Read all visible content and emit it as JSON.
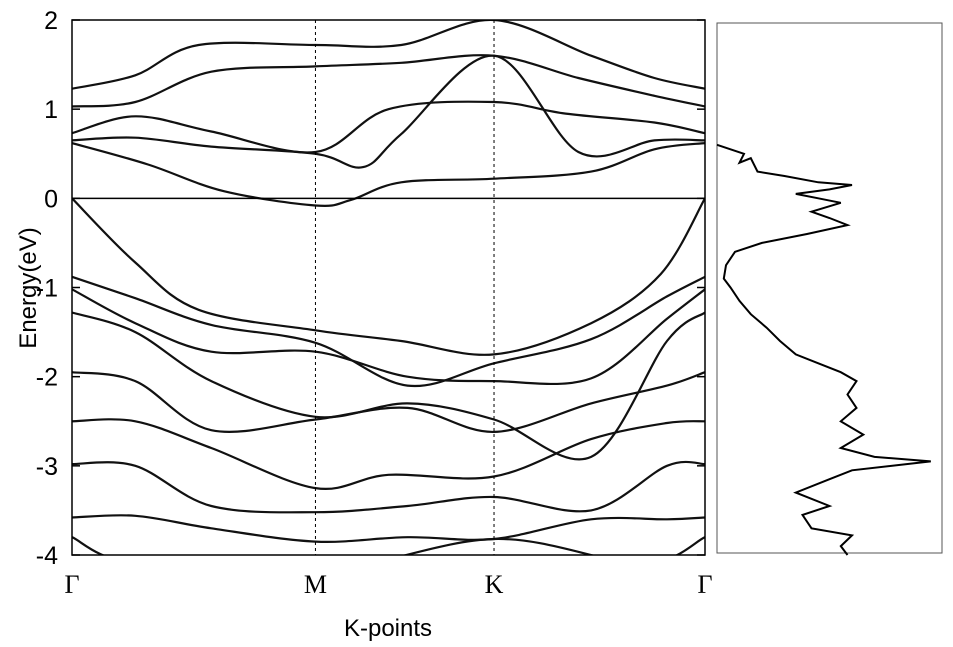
{
  "chart_data": [
    {
      "type": "line",
      "title": "",
      "xlabel": "K-points",
      "ylabel": "Energy(eV)",
      "ylim": [
        -4,
        2
      ],
      "xlim": [
        0,
        1
      ],
      "high_symmetry_points": [
        {
          "label": "Γ",
          "x": 0.0
        },
        {
          "label": "M",
          "x": 0.3846
        },
        {
          "label": "K",
          "x": 0.6667
        },
        {
          "label": "Γ",
          "x": 1.0
        }
      ],
      "yticks": [
        -4,
        -3,
        -2,
        -1,
        0,
        1,
        2
      ],
      "ytick_labels": [
        "-4",
        "-3",
        "-2",
        "-1",
        "0",
        "1",
        "2"
      ],
      "fermi_level": 0,
      "grid": false,
      "series": [
        {
          "values": [
            [
              0,
              1.23
            ],
            [
              0.1,
              1.38
            ],
            [
              0.2,
              1.72
            ],
            [
              0.3846,
              1.72
            ],
            [
              0.52,
              1.72
            ],
            [
              0.6667,
              2.0
            ],
            [
              0.82,
              1.6
            ],
            [
              0.92,
              1.35
            ],
            [
              1,
              1.23
            ]
          ]
        },
        {
          "values": [
            [
              0,
              1.03
            ],
            [
              0.1,
              1.08
            ],
            [
              0.22,
              1.42
            ],
            [
              0.3846,
              1.48
            ],
            [
              0.52,
              1.52
            ],
            [
              0.6667,
              1.6
            ],
            [
              0.8,
              1.35
            ],
            [
              0.92,
              1.15
            ],
            [
              1,
              1.03
            ]
          ]
        },
        {
          "values": [
            [
              0,
              0.73
            ],
            [
              0.1,
              0.92
            ],
            [
              0.22,
              0.75
            ],
            [
              0.3846,
              0.52
            ],
            [
              0.5,
              1.0
            ],
            [
              0.6667,
              1.08
            ],
            [
              0.78,
              0.95
            ],
            [
              0.92,
              0.85
            ],
            [
              1,
              0.73
            ]
          ]
        },
        {
          "values": [
            [
              0,
              0.65
            ],
            [
              0.1,
              0.68
            ],
            [
              0.22,
              0.58
            ],
            [
              0.3846,
              0.5
            ],
            [
              0.46,
              0.35
            ],
            [
              0.52,
              0.72
            ],
            [
              0.6667,
              1.6
            ],
            [
              0.8,
              0.52
            ],
            [
              0.92,
              0.65
            ],
            [
              1,
              0.65
            ]
          ]
        },
        {
          "values": [
            [
              0,
              0.62
            ],
            [
              0.12,
              0.38
            ],
            [
              0.24,
              0.08
            ],
            [
              0.3846,
              -0.08
            ],
            [
              0.44,
              -0.02
            ],
            [
              0.52,
              0.18
            ],
            [
              0.6667,
              0.22
            ],
            [
              0.82,
              0.3
            ],
            [
              0.92,
              0.55
            ],
            [
              1,
              0.62
            ]
          ]
        },
        {
          "values": [
            [
              0,
              0.0
            ],
            [
              0.1,
              -0.72
            ],
            [
              0.2,
              -1.25
            ],
            [
              0.3846,
              -1.48
            ],
            [
              0.52,
              -1.6
            ],
            [
              0.6667,
              -1.75
            ],
            [
              0.82,
              -1.4
            ],
            [
              0.93,
              -0.85
            ],
            [
              1,
              0.0
            ]
          ]
        },
        {
          "values": [
            [
              0,
              -0.88
            ],
            [
              0.1,
              -1.12
            ],
            [
              0.22,
              -1.42
            ],
            [
              0.3846,
              -1.62
            ],
            [
              0.53,
              -2.1
            ],
            [
              0.6667,
              -1.85
            ],
            [
              0.82,
              -1.58
            ],
            [
              0.94,
              -1.1
            ],
            [
              1,
              -0.88
            ]
          ]
        },
        {
          "values": [
            [
              0,
              -1.02
            ],
            [
              0.1,
              -1.4
            ],
            [
              0.22,
              -1.72
            ],
            [
              0.3846,
              -1.72
            ],
            [
              0.53,
              -2.0
            ],
            [
              0.6667,
              -2.05
            ],
            [
              0.82,
              -2.02
            ],
            [
              0.94,
              -1.35
            ],
            [
              1,
              -1.02
            ]
          ]
        },
        {
          "values": [
            [
              0,
              -1.28
            ],
            [
              0.1,
              -1.5
            ],
            [
              0.22,
              -2.05
            ],
            [
              0.3846,
              -2.45
            ],
            [
              0.53,
              -2.3
            ],
            [
              0.6667,
              -2.48
            ],
            [
              0.82,
              -2.9
            ],
            [
              0.94,
              -1.6
            ],
            [
              1,
              -1.28
            ]
          ]
        },
        {
          "values": [
            [
              0,
              -1.95
            ],
            [
              0.1,
              -2.05
            ],
            [
              0.22,
              -2.6
            ],
            [
              0.3846,
              -2.48
            ],
            [
              0.53,
              -2.35
            ],
            [
              0.6667,
              -2.62
            ],
            [
              0.82,
              -2.3
            ],
            [
              0.94,
              -2.1
            ],
            [
              1,
              -1.95
            ]
          ]
        },
        {
          "values": [
            [
              0,
              -2.5
            ],
            [
              0.1,
              -2.5
            ],
            [
              0.22,
              -2.8
            ],
            [
              0.3846,
              -3.25
            ],
            [
              0.5,
              -3.1
            ],
            [
              0.6667,
              -3.12
            ],
            [
              0.82,
              -2.7
            ],
            [
              0.94,
              -2.52
            ],
            [
              1,
              -2.5
            ]
          ]
        },
        {
          "values": [
            [
              0,
              -2.98
            ],
            [
              0.1,
              -3.0
            ],
            [
              0.22,
              -3.45
            ],
            [
              0.3846,
              -3.52
            ],
            [
              0.53,
              -3.45
            ],
            [
              0.6667,
              -3.35
            ],
            [
              0.82,
              -3.5
            ],
            [
              0.94,
              -3.0
            ],
            [
              1,
              -2.98
            ]
          ]
        },
        {
          "values": [
            [
              0,
              -3.58
            ],
            [
              0.1,
              -3.56
            ],
            [
              0.22,
              -3.7
            ],
            [
              0.3846,
              -3.85
            ],
            [
              0.53,
              -3.8
            ],
            [
              0.6667,
              -3.82
            ],
            [
              0.82,
              -3.6
            ],
            [
              0.94,
              -3.6
            ],
            [
              1,
              -3.58
            ]
          ]
        },
        {
          "values": [
            [
              0,
              -3.8
            ],
            [
              0.1,
              -4.1
            ],
            [
              0.3846,
              -4.2
            ],
            [
              0.6667,
              -3.82
            ],
            [
              0.9,
              -4.1
            ],
            [
              1,
              -3.8
            ]
          ]
        }
      ]
    },
    {
      "type": "line",
      "title": "",
      "xlabel": "",
      "ylabel": "",
      "ylim": [
        -4,
        2
      ],
      "series": [
        {
          "values": [
            [
              0.0,
              0.6
            ],
            [
              0.12,
              0.5
            ],
            [
              0.1,
              0.4
            ],
            [
              0.15,
              0.45
            ],
            [
              0.18,
              0.3
            ],
            [
              0.3,
              0.25
            ],
            [
              0.45,
              0.18
            ],
            [
              0.6,
              0.15
            ],
            [
              0.5,
              0.1
            ],
            [
              0.35,
              0.05
            ],
            [
              0.45,
              0.0
            ],
            [
              0.55,
              -0.05
            ],
            [
              0.42,
              -0.15
            ],
            [
              0.5,
              -0.22
            ],
            [
              0.58,
              -0.3
            ],
            [
              0.4,
              -0.4
            ],
            [
              0.2,
              -0.5
            ],
            [
              0.08,
              -0.6
            ],
            [
              0.04,
              -0.75
            ],
            [
              0.03,
              -0.9
            ],
            [
              0.06,
              -1.0
            ],
            [
              0.1,
              -1.15
            ],
            [
              0.15,
              -1.3
            ],
            [
              0.22,
              -1.45
            ],
            [
              0.28,
              -1.6
            ],
            [
              0.35,
              -1.75
            ],
            [
              0.45,
              -1.85
            ],
            [
              0.55,
              -1.95
            ],
            [
              0.62,
              -2.05
            ],
            [
              0.58,
              -2.2
            ],
            [
              0.62,
              -2.35
            ],
            [
              0.55,
              -2.5
            ],
            [
              0.65,
              -2.65
            ],
            [
              0.55,
              -2.8
            ],
            [
              0.7,
              -2.9
            ],
            [
              0.95,
              -2.95
            ],
            [
              0.6,
              -3.05
            ],
            [
              0.5,
              -3.15
            ],
            [
              0.35,
              -3.3
            ],
            [
              0.5,
              -3.45
            ],
            [
              0.38,
              -3.55
            ],
            [
              0.42,
              -3.7
            ],
            [
              0.6,
              -3.78
            ],
            [
              0.55,
              -3.9
            ],
            [
              0.58,
              -4.0
            ]
          ]
        }
      ]
    }
  ]
}
